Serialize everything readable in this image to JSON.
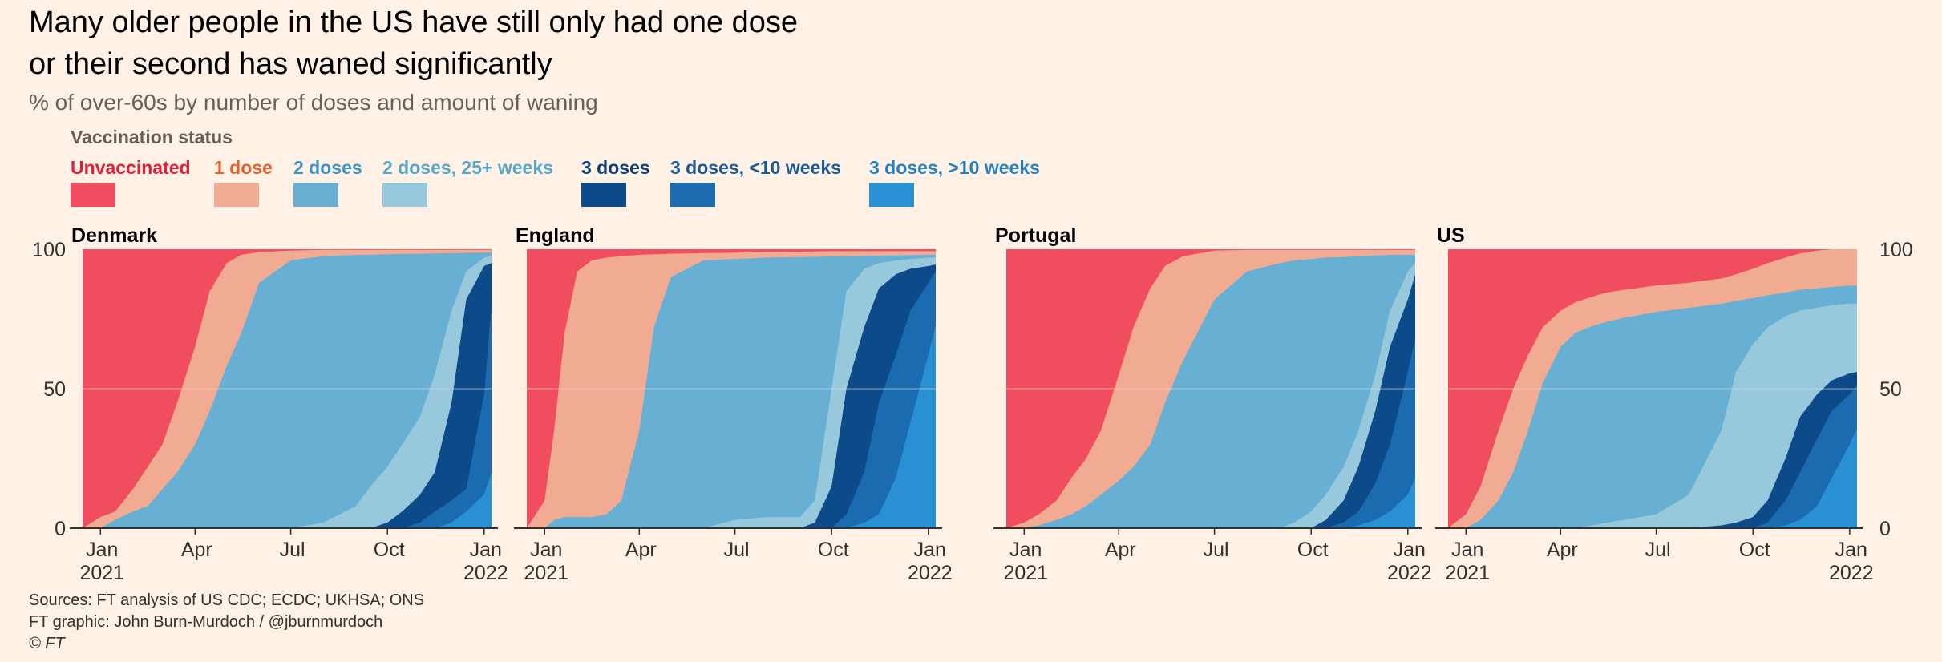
{
  "title_lines": [
    "Many older people in the US have still only had one dose",
    "or their second has waned significantly"
  ],
  "subtitle": "% of over-60s by number of doses and amount of waning",
  "legend": {
    "title": "Vaccination status",
    "items": [
      {
        "label": "Unvaccinated",
        "color": "#f04e5e",
        "text_color": "#e0203a"
      },
      {
        "label": "1 dose",
        "color": "#f2ab93",
        "text_color": "#e0632f"
      },
      {
        "label": "2 doses",
        "color": "#67b0d3",
        "text_color": "#3d93c4"
      },
      {
        "label": "2 doses, 25+ weeks",
        "color": "#98c8dc",
        "text_color": "#58a6c8"
      },
      {
        "label": "3 doses",
        "color": "#0c4a8a",
        "text_color": "#0c3f78"
      },
      {
        "label": "3 doses, <10 weeks",
        "color": "#1b6bb0",
        "text_color": "#1a5a98"
      },
      {
        "label": "3 doses, >10 weeks",
        "color": "#2990d3",
        "text_color": "#2580c2"
      }
    ]
  },
  "source_lines": [
    "Sources: FT analysis of US CDC; ECDC; UKHSA; ONS",
    "FT graphic: John Burn-Murdoch / @jburnmurdoch",
    "© FT"
  ],
  "chart_data": {
    "type": "area",
    "stacked": true,
    "ylim": [
      0,
      100
    ],
    "y_ticks": [
      "0",
      "50",
      "100"
    ],
    "x_range": [
      "2020-12-15",
      "2022-01-08"
    ],
    "x_ticks": [
      {
        "date": "2021-01-01",
        "line1": "Jan",
        "line2": "2021"
      },
      {
        "date": "2021-04-01",
        "line1": "Apr",
        "line2": ""
      },
      {
        "date": "2021-07-01",
        "line1": "Jul",
        "line2": ""
      },
      {
        "date": "2021-10-01",
        "line1": "Oct",
        "line2": ""
      },
      {
        "date": "2022-01-01",
        "line1": "Jan",
        "line2": "2022"
      }
    ],
    "series_order": [
      "Unvaccinated",
      "1 dose",
      "2 doses",
      "2 doses, 25+ weeks",
      "3 doses",
      "3 doses, <10 weeks",
      "3 doses, >10 weeks"
    ],
    "panels": [
      {
        "name": "Denmark",
        "dates": [
          "2020-12-15",
          "2021-01-01",
          "2021-01-15",
          "2021-02-01",
          "2021-02-15",
          "2021-03-01",
          "2021-03-15",
          "2021-04-01",
          "2021-04-15",
          "2021-05-01",
          "2021-05-15",
          "2021-06-01",
          "2021-07-01",
          "2021-08-01",
          "2021-09-01",
          "2021-09-15",
          "2021-10-01",
          "2021-10-15",
          "2021-11-01",
          "2021-11-15",
          "2021-12-01",
          "2021-12-15",
          "2022-01-01",
          "2022-01-08"
        ],
        "cumulative": {
          "any_dose": [
            0,
            4,
            6,
            14,
            22,
            30,
            45,
            65,
            85,
            95,
            98,
            99,
            99.5,
            99.8,
            99.8,
            99.8,
            99.8,
            99.8,
            99.8,
            99.8,
            99.8,
            99.8,
            99.8,
            99.8
          ],
          "two_doses": [
            0,
            0,
            3,
            6,
            8,
            14,
            20,
            30,
            42,
            58,
            70,
            88,
            96,
            97.5,
            98,
            98,
            98.2,
            98.3,
            98.4,
            98.5,
            98.6,
            98.7,
            98.8,
            98.8
          ],
          "waned_25w": [
            0,
            0,
            0,
            0,
            0,
            0,
            0,
            0,
            0,
            0,
            0,
            0,
            0,
            2,
            8,
            15,
            22,
            30,
            40,
            55,
            78,
            92,
            97,
            97.5
          ],
          "three_doses": [
            0,
            0,
            0,
            0,
            0,
            0,
            0,
            0,
            0,
            0,
            0,
            0,
            0,
            0,
            0,
            0,
            2,
            6,
            12,
            20,
            45,
            82,
            94,
            95
          ],
          "three_lt10": [
            0,
            0,
            0,
            0,
            0,
            0,
            0,
            0,
            0,
            0,
            0,
            0,
            0,
            0,
            0,
            0,
            0,
            0,
            2,
            6,
            10,
            14,
            48,
            80
          ],
          "three_gt10": [
            0,
            0,
            0,
            0,
            0,
            0,
            0,
            0,
            0,
            0,
            0,
            0,
            0,
            0,
            0,
            0,
            0,
            0,
            0,
            0,
            2,
            6,
            12,
            20
          ]
        }
      },
      {
        "name": "England",
        "dates": [
          "2020-12-15",
          "2021-01-01",
          "2021-01-10",
          "2021-01-20",
          "2021-02-01",
          "2021-02-15",
          "2021-03-01",
          "2021-03-15",
          "2021-04-01",
          "2021-04-15",
          "2021-05-01",
          "2021-06-01",
          "2021-07-01",
          "2021-08-01",
          "2021-09-01",
          "2021-09-15",
          "2021-10-01",
          "2021-10-15",
          "2021-11-01",
          "2021-11-15",
          "2021-12-01",
          "2021-12-15",
          "2022-01-01",
          "2022-01-08"
        ],
        "cumulative": {
          "any_dose": [
            0,
            10,
            35,
            70,
            92,
            96,
            97,
            97.5,
            98,
            98.2,
            98.4,
            98.6,
            98.8,
            99,
            99.1,
            99.2,
            99.3,
            99.3,
            99.3,
            99.3,
            99.3,
            99.3,
            99.3,
            99.3
          ],
          "two_doses": [
            0,
            0,
            3,
            4,
            4,
            4,
            5,
            10,
            35,
            72,
            90,
            96,
            96.5,
            97,
            97.2,
            97.3,
            97.4,
            97.5,
            97.6,
            97.7,
            97.8,
            97.9,
            98,
            98
          ],
          "waned_25w": [
            0,
            0,
            0,
            0,
            0,
            0,
            0,
            0,
            0,
            0,
            0,
            0,
            3,
            4,
            4,
            10,
            50,
            85,
            93,
            95,
            96,
            96.5,
            97,
            97
          ],
          "three_doses": [
            0,
            0,
            0,
            0,
            0,
            0,
            0,
            0,
            0,
            0,
            0,
            0,
            0,
            0,
            0,
            2,
            15,
            50,
            72,
            86,
            91,
            93,
            94,
            94.5
          ],
          "three_lt10": [
            0,
            0,
            0,
            0,
            0,
            0,
            0,
            0,
            0,
            0,
            0,
            0,
            0,
            0,
            0,
            0,
            0,
            5,
            20,
            45,
            62,
            78,
            88,
            92
          ],
          "three_gt10": [
            0,
            0,
            0,
            0,
            0,
            0,
            0,
            0,
            0,
            0,
            0,
            0,
            0,
            0,
            0,
            0,
            0,
            0,
            2,
            5,
            18,
            38,
            62,
            73
          ]
        }
      },
      {
        "name": "Portugal",
        "dates": [
          "2020-12-15",
          "2021-01-01",
          "2021-01-15",
          "2021-02-01",
          "2021-02-15",
          "2021-03-01",
          "2021-03-15",
          "2021-04-01",
          "2021-04-15",
          "2021-05-01",
          "2021-05-15",
          "2021-06-01",
          "2021-07-01",
          "2021-08-01",
          "2021-09-01",
          "2021-09-15",
          "2021-10-01",
          "2021-10-15",
          "2021-11-01",
          "2021-11-15",
          "2021-12-01",
          "2021-12-15",
          "2022-01-01",
          "2022-01-08"
        ],
        "cumulative": {
          "any_dose": [
            0,
            2,
            5,
            10,
            18,
            25,
            35,
            55,
            72,
            86,
            94,
            97.5,
            99.5,
            99.8,
            99.8,
            99.8,
            99.8,
            99.8,
            99.8,
            99.8,
            99.8,
            99.8,
            99.8,
            99.8
          ],
          "two_doses": [
            0,
            0,
            1,
            3,
            5,
            8,
            12,
            17,
            22,
            30,
            45,
            60,
            82,
            92,
            95,
            96,
            96.5,
            97,
            97.2,
            97.5,
            97.8,
            98,
            98,
            98
          ],
          "waned_25w": [
            0,
            0,
            0,
            0,
            0,
            0,
            0,
            0,
            0,
            0,
            0,
            0,
            0,
            0,
            0,
            2,
            6,
            12,
            22,
            35,
            55,
            78,
            92,
            95
          ],
          "three_doses": [
            0,
            0,
            0,
            0,
            0,
            0,
            0,
            0,
            0,
            0,
            0,
            0,
            0,
            0,
            0,
            0,
            0,
            3,
            10,
            22,
            42,
            65,
            82,
            91
          ],
          "three_lt10": [
            0,
            0,
            0,
            0,
            0,
            0,
            0,
            0,
            0,
            0,
            0,
            0,
            0,
            0,
            0,
            0,
            0,
            0,
            2,
            6,
            16,
            30,
            56,
            68
          ],
          "three_gt10": [
            0,
            0,
            0,
            0,
            0,
            0,
            0,
            0,
            0,
            0,
            0,
            0,
            0,
            0,
            0,
            0,
            0,
            0,
            0,
            1,
            3,
            6,
            12,
            18
          ]
        }
      },
      {
        "name": "US",
        "dates": [
          "2020-12-15",
          "2021-01-01",
          "2021-01-15",
          "2021-02-01",
          "2021-02-15",
          "2021-03-01",
          "2021-03-15",
          "2021-04-01",
          "2021-04-15",
          "2021-05-01",
          "2021-05-15",
          "2021-06-01",
          "2021-07-01",
          "2021-08-01",
          "2021-09-01",
          "2021-09-15",
          "2021-10-01",
          "2021-10-15",
          "2021-11-01",
          "2021-11-15",
          "2021-12-01",
          "2021-12-15",
          "2022-01-01",
          "2022-01-08"
        ],
        "cumulative": {
          "any_dose": [
            0,
            5,
            15,
            35,
            50,
            62,
            72,
            78,
            81,
            83,
            84.5,
            85.5,
            87,
            88,
            89.5,
            91,
            93,
            95,
            97,
            98.5,
            99.5,
            100,
            100,
            100
          ],
          "two_doses": [
            0,
            0,
            3,
            10,
            20,
            35,
            52,
            65,
            70,
            72.5,
            74,
            75.5,
            77.5,
            79,
            80.5,
            81.5,
            82.5,
            83.5,
            84.5,
            85.5,
            86,
            86.5,
            87,
            87
          ],
          "waned_25w": [
            0,
            0,
            0,
            0,
            0,
            0,
            0,
            0,
            0,
            1,
            2,
            3,
            5,
            12,
            35,
            56,
            66,
            72,
            76,
            78,
            79,
            80,
            80.5,
            80.5
          ],
          "three_doses": [
            0,
            0,
            0,
            0,
            0,
            0,
            0,
            0,
            0,
            0,
            0,
            0,
            0,
            0,
            1,
            2,
            4,
            10,
            25,
            40,
            48,
            53,
            55.5,
            56
          ],
          "three_lt10": [
            0,
            0,
            0,
            0,
            0,
            0,
            0,
            0,
            0,
            0,
            0,
            0,
            0,
            0,
            0,
            0,
            0,
            2,
            10,
            20,
            32,
            42,
            48,
            51
          ],
          "three_gt10": [
            0,
            0,
            0,
            0,
            0,
            0,
            0,
            0,
            0,
            0,
            0,
            0,
            0,
            0,
            0,
            0,
            0,
            0,
            1,
            3,
            8,
            18,
            30,
            36
          ]
        }
      }
    ]
  }
}
